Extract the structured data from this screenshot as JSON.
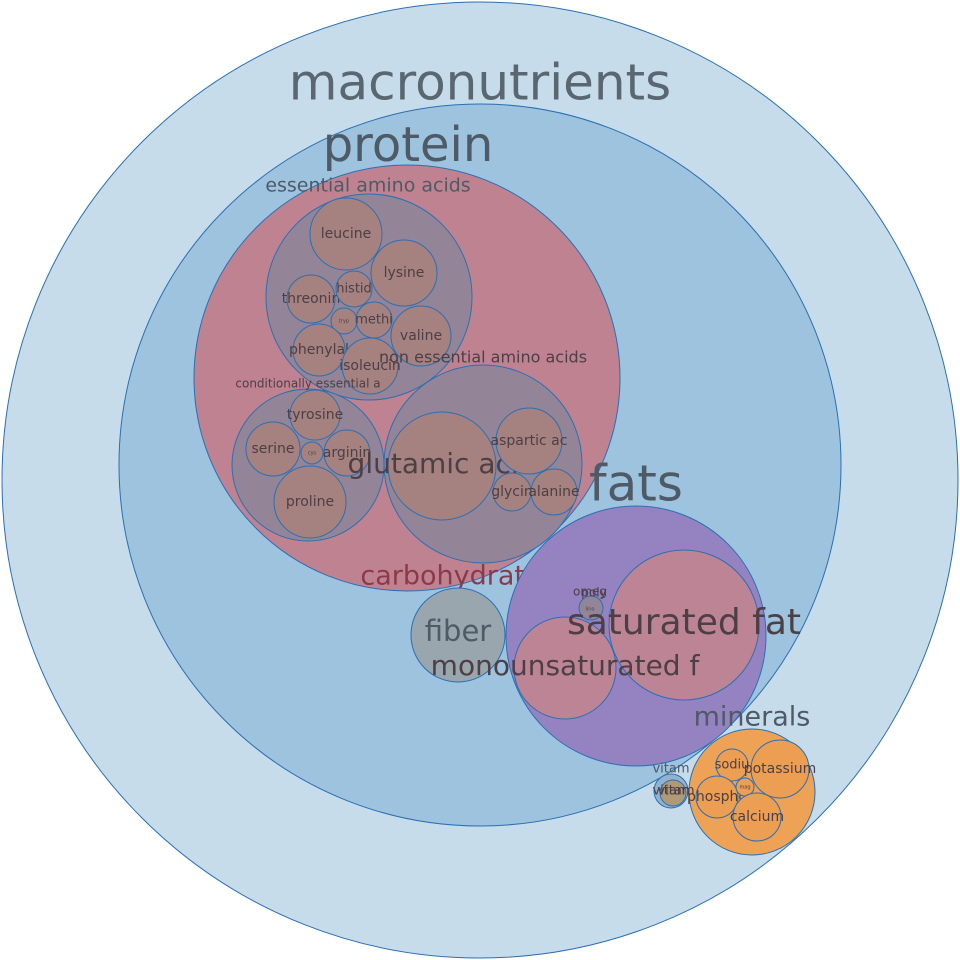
{
  "diagram": {
    "macronutrients": "macronutrients",
    "protein": "protein",
    "carbohydrates": "carbohydrates",
    "essential_amino_acids": "essential amino acids",
    "conditionally_essential": "conditionally essential a",
    "non_essential": "non essential amino acids",
    "fats": "fats",
    "fiber": "fiber",
    "minerals": "minerals",
    "vitamins": "vitam",
    "essential": {
      "leucine": "leucine",
      "lysine": "lysine",
      "threonine": "threonin",
      "histidine": "histid",
      "methionine": "methi",
      "tryptophan": "tryp",
      "valine": "valine",
      "phenylalanine": "phenylal",
      "isoleucine": "isoleucin"
    },
    "conditional": {
      "tyrosine": "tyrosine",
      "serine": "serine",
      "cystine": "cys",
      "arginine": "arginin",
      "proline": "proline"
    },
    "nonessential": {
      "glutamic_acid": "glutamic acid",
      "aspartic_acid": "aspartic ac",
      "glycine": "glycin",
      "alanine": "alanine"
    },
    "fat_types": {
      "saturated": "saturated fat",
      "monounsaturated": "monounsaturated f",
      "omega": "omeg",
      "poly": "poly",
      "tiny": "lino"
    },
    "mineral_items": {
      "sodium": "sodiu",
      "potassium": "potassium",
      "phosphorus": "phospho",
      "calcium": "calcium",
      "magnesium": "mag"
    },
    "vitamin_items": {
      "vitamin_a": "vitam",
      "vitamin_b": "vitam"
    }
  }
}
